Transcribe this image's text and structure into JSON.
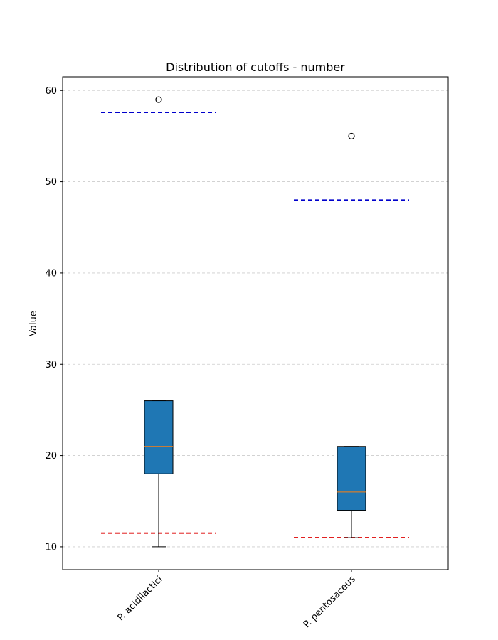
{
  "chart_data": {
    "type": "boxplot",
    "title": "Distribution of cutoffs - number",
    "xlabel": "",
    "ylabel": "Value",
    "ylim": [
      7.5,
      61.5
    ],
    "yticks": [
      10,
      20,
      30,
      40,
      50,
      60
    ],
    "grid": "y-dashed",
    "categories": [
      "P. acidilactici",
      "P. pentosaceus"
    ],
    "boxes": [
      {
        "category": "P. acidilactici",
        "whisker_low": 10,
        "q1": 18,
        "median": 21,
        "q3": 26,
        "whisker_high": 26,
        "outliers": [
          59
        ],
        "upper_cutoff": 57.6,
        "lower_cutoff": 11.5
      },
      {
        "category": "P. pentosaceus",
        "whisker_low": 11,
        "q1": 14,
        "median": 16,
        "q3": 21,
        "whisker_high": 21,
        "outliers": [
          55
        ],
        "upper_cutoff": 48,
        "lower_cutoff": 11
      }
    ],
    "colors": {
      "box_fill": "#1f77b4",
      "median": "#ff7f0e",
      "upper_cutoff": "#0000cc",
      "lower_cutoff": "#dd0000",
      "grid": "#cccccc"
    }
  }
}
